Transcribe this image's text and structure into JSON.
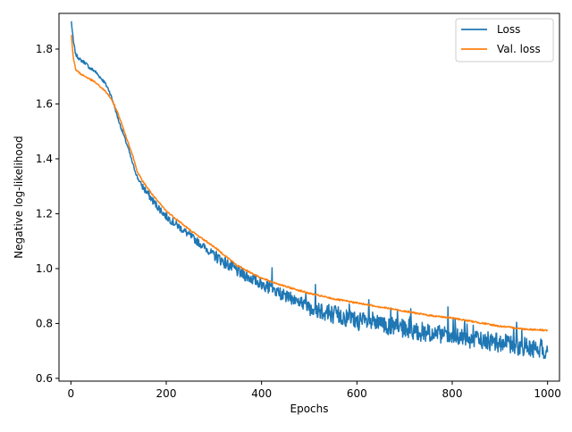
{
  "chart_data": {
    "type": "line",
    "title": "",
    "xlabel": "Epochs",
    "ylabel": "Negative log-likelihood",
    "xlim": [
      -25,
      1025
    ],
    "ylim": [
      0.59,
      1.93
    ],
    "xticks": [
      0,
      200,
      400,
      600,
      800,
      1000
    ],
    "yticks": [
      0.6,
      0.8,
      1.0,
      1.2,
      1.4,
      1.6,
      1.8
    ],
    "xtick_labels": [
      "0",
      "200",
      "400",
      "600",
      "800",
      "1000"
    ],
    "ytick_labels": [
      "0.6",
      "0.8",
      "1.0",
      "1.2",
      "1.4",
      "1.6",
      "1.8"
    ],
    "grid": false,
    "legend_position": "upper right",
    "series": [
      {
        "name": "Loss",
        "color": "#1f77b4",
        "noisy": true,
        "x": [
          1,
          5,
          10,
          20,
          30,
          40,
          50,
          60,
          70,
          80,
          90,
          100,
          110,
          120,
          130,
          140,
          150,
          175,
          200,
          250,
          300,
          350,
          400,
          450,
          500,
          550,
          600,
          650,
          700,
          750,
          800,
          850,
          900,
          950,
          1000
        ],
        "values": [
          1.9,
          1.83,
          1.78,
          1.76,
          1.75,
          1.73,
          1.72,
          1.7,
          1.68,
          1.65,
          1.6,
          1.54,
          1.49,
          1.44,
          1.38,
          1.33,
          1.3,
          1.24,
          1.19,
          1.12,
          1.05,
          0.99,
          0.945,
          0.9,
          0.865,
          0.835,
          0.81,
          0.795,
          0.78,
          0.765,
          0.75,
          0.74,
          0.73,
          0.715,
          0.7
        ]
      },
      {
        "name": "Val. loss",
        "color": "#ff7f0e",
        "noisy": false,
        "x": [
          1,
          5,
          10,
          20,
          30,
          40,
          50,
          60,
          70,
          80,
          90,
          100,
          110,
          120,
          130,
          140,
          150,
          175,
          200,
          250,
          300,
          350,
          400,
          450,
          500,
          550,
          600,
          650,
          700,
          750,
          800,
          850,
          900,
          950,
          1000
        ],
        "values": [
          1.85,
          1.77,
          1.725,
          1.71,
          1.7,
          1.69,
          1.68,
          1.665,
          1.65,
          1.63,
          1.6,
          1.56,
          1.51,
          1.46,
          1.41,
          1.35,
          1.32,
          1.26,
          1.21,
          1.14,
          1.08,
          1.01,
          0.965,
          0.935,
          0.91,
          0.89,
          0.875,
          0.86,
          0.845,
          0.83,
          0.82,
          0.805,
          0.79,
          0.78,
          0.775
        ]
      }
    ]
  }
}
